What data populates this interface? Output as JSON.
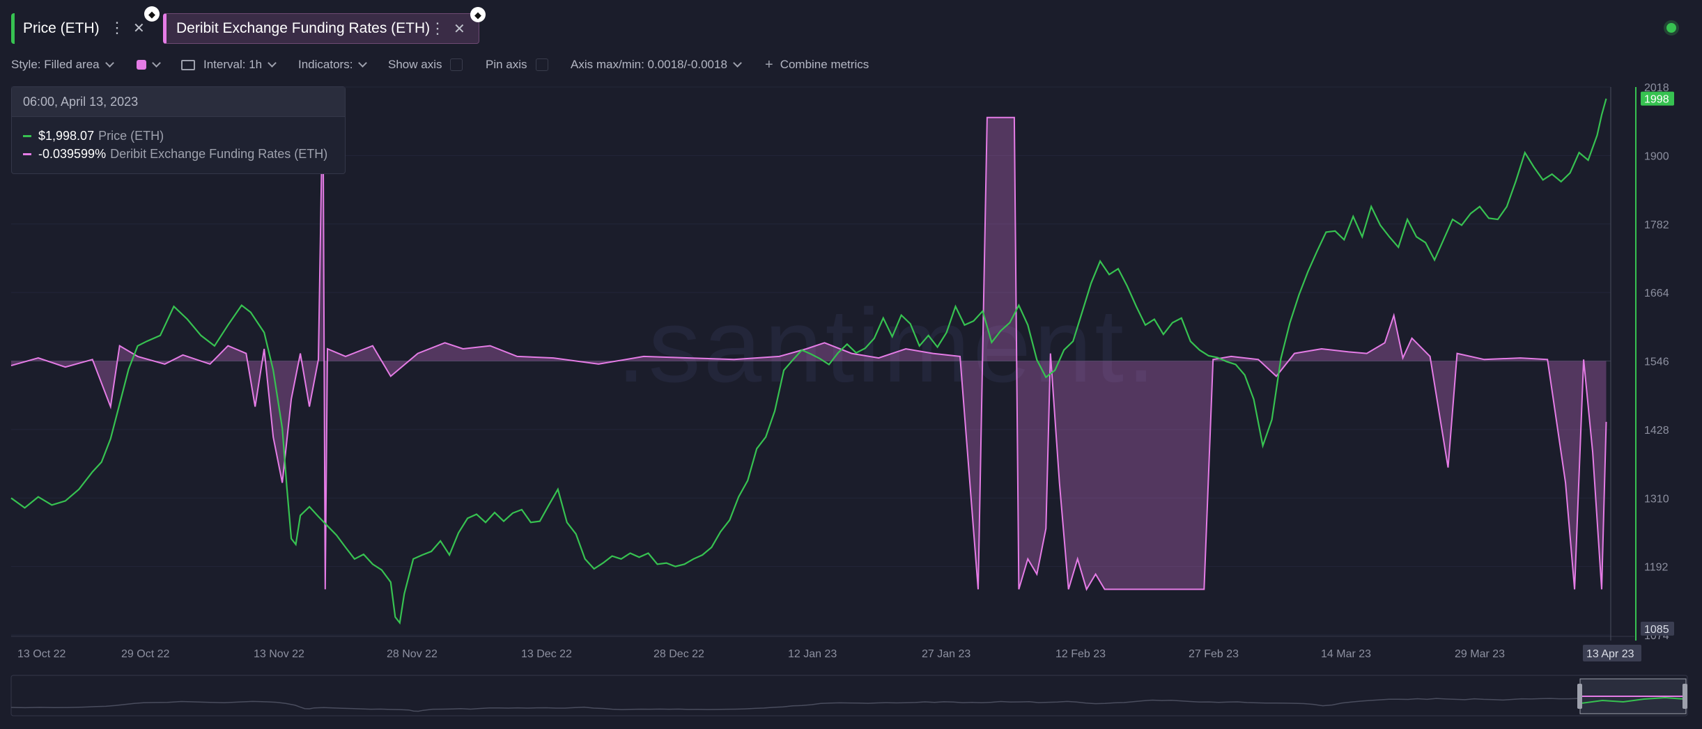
{
  "tabs": [
    {
      "label": "Price (ETH)",
      "color": "#37c251",
      "icon": "ethereum-icon"
    },
    {
      "label": "Deribit Exchange Funding Rates (ETH)",
      "color": "#e57ce6",
      "icon": "ethereum-icon"
    }
  ],
  "toolbar": {
    "style": "Style: Filled area",
    "interval": "Interval: 1h",
    "indicators": "Indicators:",
    "show_axis": "Show axis",
    "pin_axis": "Pin axis",
    "axis_minmax": "Axis max/min: 0.0018/-0.0018",
    "combine": "Combine metrics",
    "swatch_color": "#e57ce6"
  },
  "tooltip": {
    "date": "06:00, April 13, 2023",
    "rows": [
      {
        "value": "$1,998.07",
        "name": "Price (ETH)",
        "color": "#37c251"
      },
      {
        "value": "-0.039599%",
        "name": "Deribit Exchange Funding Rates (ETH)",
        "color": "#e57ce6"
      }
    ]
  },
  "watermark": ".santiment.",
  "chart_data": {
    "type": "line",
    "x_tick_labels": [
      "13 Oct 22",
      "29 Oct 22",
      "13 Nov 22",
      "28 Nov 22",
      "13 Dec 22",
      "28 Dec 22",
      "12 Jan 23",
      "27 Jan 23",
      "12 Feb 23",
      "27 Feb 23",
      "14 Mar 23",
      "29 Mar 23",
      "13 Apr 23"
    ],
    "y_tick_labels": [
      "2018",
      "1900",
      "1782",
      "1664",
      "1546",
      "1428",
      "1310",
      "1192",
      "1074"
    ],
    "ylim": [
      1074,
      2018
    ],
    "y_min_label": "1085",
    "y_current_label": "1998",
    "x_hover_label": "13 Apr 23",
    "funding_axis": [
      -0.0018,
      0.0018
    ],
    "series": [
      {
        "name": "Price (ETH)",
        "color": "#37c251",
        "points": [
          [
            0,
            1310
          ],
          [
            3,
            1293
          ],
          [
            6,
            1312
          ],
          [
            9,
            1298
          ],
          [
            12,
            1305
          ],
          [
            15,
            1325
          ],
          [
            18,
            1355
          ],
          [
            20,
            1372
          ],
          [
            22,
            1412
          ],
          [
            24,
            1472
          ],
          [
            26,
            1532
          ],
          [
            28,
            1572
          ],
          [
            30,
            1580
          ],
          [
            33,
            1590
          ],
          [
            36,
            1640
          ],
          [
            39,
            1618
          ],
          [
            42,
            1590
          ],
          [
            45,
            1572
          ],
          [
            48,
            1608
          ],
          [
            51,
            1642
          ],
          [
            53,
            1630
          ],
          [
            56,
            1595
          ],
          [
            58,
            1530
          ],
          [
            60,
            1430
          ],
          [
            61,
            1330
          ],
          [
            62,
            1240
          ],
          [
            63,
            1230
          ],
          [
            64,
            1280
          ],
          [
            66,
            1295
          ],
          [
            68,
            1278
          ],
          [
            70,
            1262
          ],
          [
            72,
            1246
          ],
          [
            74,
            1225
          ],
          [
            76,
            1205
          ],
          [
            78,
            1213
          ],
          [
            80,
            1196
          ],
          [
            82,
            1186
          ],
          [
            84,
            1165
          ],
          [
            85,
            1105
          ],
          [
            86,
            1095
          ],
          [
            87,
            1145
          ],
          [
            89,
            1205
          ],
          [
            91,
            1212
          ],
          [
            93,
            1218
          ],
          [
            95,
            1236
          ],
          [
            97,
            1212
          ],
          [
            99,
            1250
          ],
          [
            101,
            1275
          ],
          [
            103,
            1282
          ],
          [
            105,
            1268
          ],
          [
            107,
            1285
          ],
          [
            109,
            1270
          ],
          [
            111,
            1284
          ],
          [
            113,
            1290
          ],
          [
            115,
            1268
          ],
          [
            117,
            1270
          ],
          [
            119,
            1298
          ],
          [
            121,
            1325
          ],
          [
            123,
            1268
          ],
          [
            125,
            1248
          ],
          [
            127,
            1205
          ],
          [
            129,
            1188
          ],
          [
            131,
            1198
          ],
          [
            133,
            1210
          ],
          [
            135,
            1205
          ],
          [
            137,
            1215
          ],
          [
            139,
            1208
          ],
          [
            141,
            1215
          ],
          [
            143,
            1196
          ],
          [
            145,
            1198
          ],
          [
            147,
            1192
          ],
          [
            149,
            1196
          ],
          [
            151,
            1205
          ],
          [
            153,
            1212
          ],
          [
            155,
            1225
          ],
          [
            157,
            1252
          ],
          [
            159,
            1272
          ],
          [
            161,
            1312
          ],
          [
            163,
            1340
          ],
          [
            165,
            1395
          ],
          [
            167,
            1415
          ],
          [
            169,
            1460
          ],
          [
            171,
            1530
          ],
          [
            173,
            1548
          ],
          [
            175,
            1565
          ],
          [
            177,
            1558
          ],
          [
            179,
            1550
          ],
          [
            181,
            1540
          ],
          [
            183,
            1560
          ],
          [
            185,
            1575
          ],
          [
            187,
            1560
          ],
          [
            189,
            1568
          ],
          [
            191,
            1585
          ],
          [
            193,
            1620
          ],
          [
            195,
            1588
          ],
          [
            197,
            1625
          ],
          [
            199,
            1610
          ],
          [
            201,
            1572
          ],
          [
            203,
            1590
          ],
          [
            205,
            1570
          ],
          [
            207,
            1595
          ],
          [
            209,
            1640
          ],
          [
            211,
            1608
          ],
          [
            213,
            1615
          ],
          [
            215,
            1632
          ],
          [
            217,
            1578
          ],
          [
            219,
            1598
          ],
          [
            221,
            1612
          ],
          [
            223,
            1642
          ],
          [
            225,
            1608
          ],
          [
            227,
            1548
          ],
          [
            229,
            1518
          ],
          [
            231,
            1530
          ],
          [
            233,
            1565
          ],
          [
            235,
            1580
          ],
          [
            237,
            1630
          ],
          [
            239,
            1680
          ],
          [
            241,
            1718
          ],
          [
            243,
            1695
          ],
          [
            245,
            1705
          ],
          [
            247,
            1675
          ],
          [
            249,
            1640
          ],
          [
            251,
            1608
          ],
          [
            253,
            1618
          ],
          [
            255,
            1592
          ],
          [
            257,
            1612
          ],
          [
            259,
            1620
          ],
          [
            261,
            1580
          ],
          [
            263,
            1565
          ],
          [
            265,
            1555
          ],
          [
            267,
            1552
          ],
          [
            269,
            1545
          ],
          [
            271,
            1540
          ],
          [
            273,
            1522
          ],
          [
            275,
            1480
          ],
          [
            277,
            1400
          ],
          [
            279,
            1445
          ],
          [
            281,
            1550
          ],
          [
            283,
            1612
          ],
          [
            285,
            1660
          ],
          [
            287,
            1700
          ],
          [
            289,
            1735
          ],
          [
            291,
            1768
          ],
          [
            293,
            1770
          ],
          [
            295,
            1755
          ],
          [
            297,
            1795
          ],
          [
            299,
            1760
          ],
          [
            301,
            1812
          ],
          [
            303,
            1780
          ],
          [
            305,
            1760
          ],
          [
            307,
            1742
          ],
          [
            309,
            1790
          ],
          [
            311,
            1760
          ],
          [
            313,
            1750
          ],
          [
            315,
            1720
          ],
          [
            317,
            1755
          ],
          [
            319,
            1790
          ],
          [
            321,
            1780
          ],
          [
            323,
            1800
          ],
          [
            325,
            1812
          ],
          [
            327,
            1792
          ],
          [
            329,
            1790
          ],
          [
            331,
            1812
          ],
          [
            333,
            1856
          ],
          [
            335,
            1905
          ],
          [
            337,
            1880
          ],
          [
            339,
            1858
          ],
          [
            341,
            1868
          ],
          [
            343,
            1855
          ],
          [
            345,
            1870
          ],
          [
            347,
            1905
          ],
          [
            349,
            1892
          ],
          [
            351,
            1935
          ],
          [
            352,
            1970
          ],
          [
            353,
            1998
          ]
        ]
      },
      {
        "name": "Deribit Exchange Funding Rates (ETH)",
        "color": "#e57ce6",
        "points": [
          [
            0,
            -3e-05
          ],
          [
            6,
            2e-05
          ],
          [
            12,
            -4e-05
          ],
          [
            18,
            1e-05
          ],
          [
            22,
            -0.0003
          ],
          [
            24,
            0.0001
          ],
          [
            28,
            3e-05
          ],
          [
            34,
            -2e-05
          ],
          [
            38,
            4e-05
          ],
          [
            44,
            -2e-05
          ],
          [
            48,
            0.0001
          ],
          [
            52,
            5e-05
          ],
          [
            54,
            -0.0003
          ],
          [
            56,
            8e-05
          ],
          [
            58,
            -0.0005
          ],
          [
            60,
            -0.0008
          ],
          [
            62,
            -0.00025
          ],
          [
            64,
            5e-05
          ],
          [
            66,
            -0.0003
          ],
          [
            68,
            1e-05
          ],
          [
            69,
            0.0018
          ],
          [
            69.5,
            -0.0015
          ],
          [
            70,
            8e-05
          ],
          [
            74,
            3e-05
          ],
          [
            80,
            0.0001
          ],
          [
            84,
            -0.0001
          ],
          [
            90,
            5e-05
          ],
          [
            96,
            0.00012
          ],
          [
            100,
            8e-05
          ],
          [
            106,
            0.0001
          ],
          [
            112,
            3e-05
          ],
          [
            120,
            2e-05
          ],
          [
            130,
            -2e-05
          ],
          [
            140,
            3e-05
          ],
          [
            150,
            2e-05
          ],
          [
            160,
            1e-05
          ],
          [
            170,
            3e-05
          ],
          [
            176,
            8e-05
          ],
          [
            180,
            0.00012
          ],
          [
            186,
            5e-05
          ],
          [
            192,
            2e-05
          ],
          [
            198,
            8e-05
          ],
          [
            204,
            5e-05
          ],
          [
            210,
            3e-05
          ],
          [
            214,
            -0.0015
          ],
          [
            216,
            0.0016
          ],
          [
            222,
            0.0016
          ],
          [
            223,
            -0.0015
          ],
          [
            225,
            -0.0013
          ],
          [
            227,
            -0.0014
          ],
          [
            229,
            -0.0011
          ],
          [
            230,
            5e-05
          ],
          [
            232,
            -0.0008
          ],
          [
            234,
            -0.0015
          ],
          [
            236,
            -0.0013
          ],
          [
            238,
            -0.0015
          ],
          [
            240,
            -0.0014
          ],
          [
            242,
            -0.0015
          ],
          [
            244,
            -0.0015
          ],
          [
            246,
            -0.0015
          ],
          [
            248,
            -0.0015
          ],
          [
            250,
            -0.0015
          ],
          [
            252,
            -0.0015
          ],
          [
            254,
            -0.0015
          ],
          [
            256,
            -0.0015
          ],
          [
            258,
            -0.0015
          ],
          [
            260,
            -0.0015
          ],
          [
            262,
            -0.0015
          ],
          [
            264,
            -0.0015
          ],
          [
            266,
            1e-05
          ],
          [
            270,
            3e-05
          ],
          [
            276,
            1e-05
          ],
          [
            280,
            -0.0001
          ],
          [
            284,
            5e-05
          ],
          [
            290,
            8e-05
          ],
          [
            296,
            6e-05
          ],
          [
            300,
            5e-05
          ],
          [
            304,
            0.00012
          ],
          [
            306,
            0.0003
          ],
          [
            308,
            2e-05
          ],
          [
            310,
            0.00015
          ],
          [
            314,
            3e-05
          ],
          [
            318,
            -0.0007
          ],
          [
            320,
            5e-05
          ],
          [
            326,
            1e-05
          ],
          [
            334,
            2e-05
          ],
          [
            340,
            1e-05
          ],
          [
            344,
            -0.0008
          ],
          [
            346,
            -0.0015
          ],
          [
            348,
            1e-05
          ],
          [
            350,
            -0.0006
          ],
          [
            352,
            -0.0015
          ],
          [
            353,
            -0.0004
          ]
        ]
      }
    ]
  }
}
